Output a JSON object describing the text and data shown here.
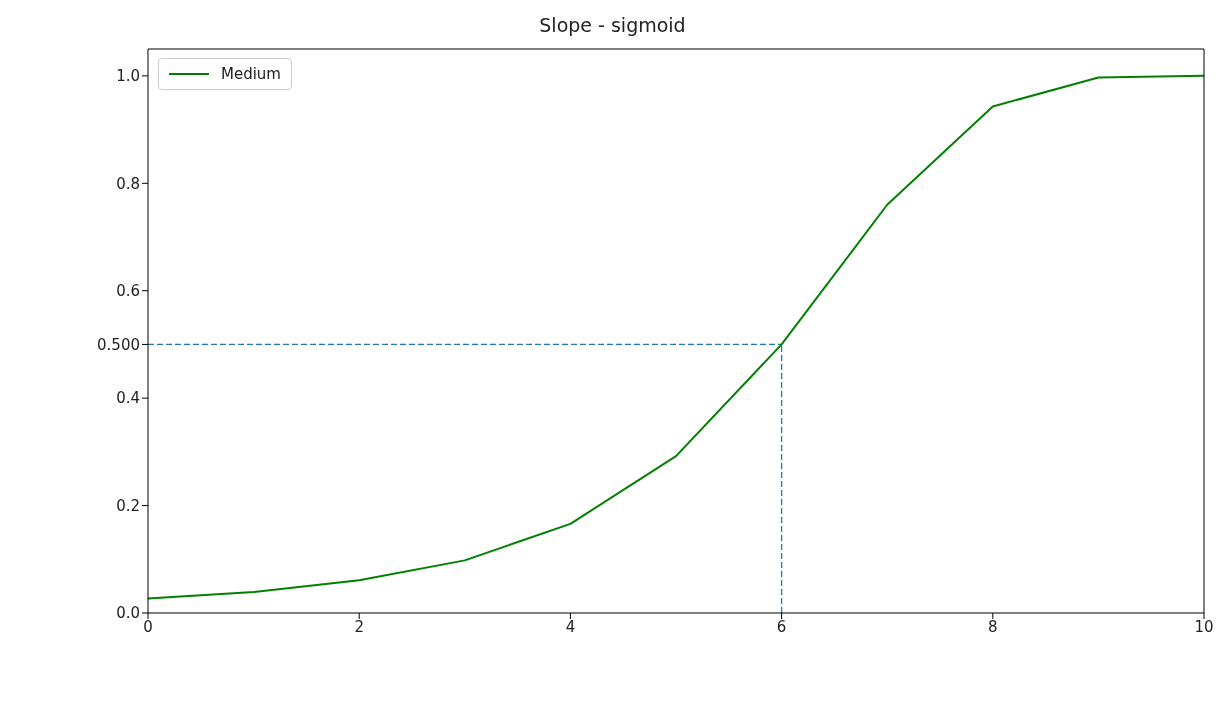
{
  "chart_data": {
    "type": "line",
    "title": "Slope - sigmoid",
    "x": [
      0,
      1,
      2,
      3,
      4,
      5,
      6,
      7,
      8,
      9,
      10
    ],
    "series": [
      {
        "name": "Medium",
        "color": "#008000",
        "values": [
          0.027,
          0.039,
          0.061,
          0.098,
          0.166,
          0.292,
          0.5,
          0.76,
          0.943,
          0.997,
          1.0
        ]
      }
    ],
    "xlim": [
      0,
      10
    ],
    "xticks": [
      0,
      2,
      4,
      6,
      8,
      10
    ],
    "ylim": [
      0,
      1.05
    ],
    "yticks": [
      {
        "value": 0,
        "label": "0.0"
      },
      {
        "value": 0.2,
        "label": "0.2"
      },
      {
        "value": 0.4,
        "label": "0.4"
      },
      {
        "value": 0.5,
        "label": "0.500"
      },
      {
        "value": 0.6,
        "label": "0.6"
      },
      {
        "value": 0.8,
        "label": "0.8"
      },
      {
        "value": 1,
        "label": "1.0"
      }
    ],
    "ref_lines": [
      {
        "axis": "y",
        "value": 0.5,
        "color": "#1f77b4",
        "line_style": "dashed"
      },
      {
        "axis": "x",
        "value": 6,
        "color": "#1f77b4",
        "line_style": "dashed"
      }
    ],
    "legend": "top left",
    "grid": false,
    "marker": "none",
    "line_style": "solid"
  }
}
